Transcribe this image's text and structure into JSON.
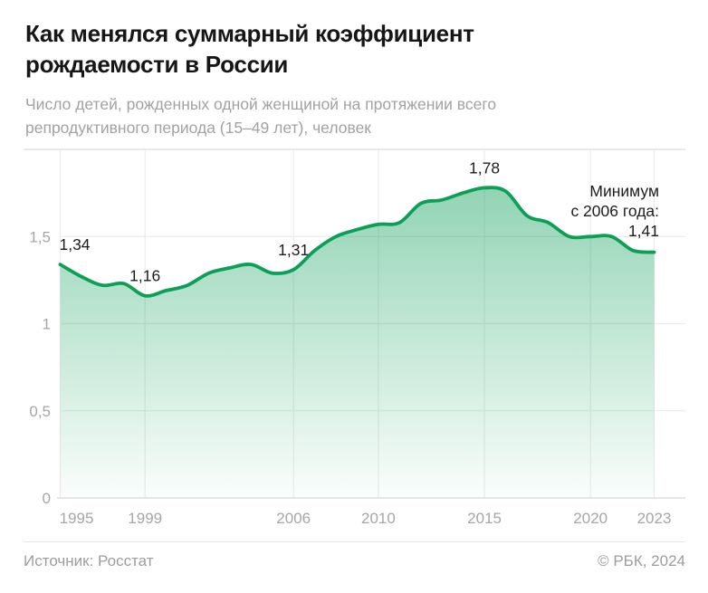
{
  "header": {
    "title_line1": "Как менялся суммарный коэффициент",
    "title_line2": "рождаемости в России",
    "subtitle_line1": "Число детей, рожденных одной женщиной на протяжении всего",
    "subtitle_line2": "репродуктивного периода (15–49 лет), человек"
  },
  "chart_data": {
    "type": "area",
    "title": "Как менялся суммарный коэффициент рождаемости в России",
    "x": [
      1995,
      1996,
      1997,
      1998,
      1999,
      2000,
      2001,
      2002,
      2003,
      2004,
      2005,
      2006,
      2007,
      2008,
      2009,
      2010,
      2011,
      2012,
      2013,
      2014,
      2015,
      2016,
      2017,
      2018,
      2019,
      2020,
      2021,
      2022,
      2023
    ],
    "values": [
      1.34,
      1.27,
      1.22,
      1.23,
      1.16,
      1.19,
      1.22,
      1.29,
      1.32,
      1.34,
      1.29,
      1.31,
      1.42,
      1.5,
      1.54,
      1.57,
      1.58,
      1.69,
      1.71,
      1.75,
      1.78,
      1.76,
      1.62,
      1.58,
      1.5,
      1.5,
      1.5,
      1.42,
      1.41
    ],
    "xlim": [
      1995,
      2023
    ],
    "ylim": [
      0,
      2
    ],
    "grid": true,
    "legend_position": "none",
    "y_ticks": [
      {
        "v": 0,
        "label": "0"
      },
      {
        "v": 0.5,
        "label": "0,5"
      },
      {
        "v": 1,
        "label": "1"
      },
      {
        "v": 1.5,
        "label": "1,5"
      }
    ],
    "x_ticks": [
      {
        "year": 1995,
        "label": "1995"
      },
      {
        "year": 1999,
        "label": "1999"
      },
      {
        "year": 2006,
        "label": "2006"
      },
      {
        "year": 2010,
        "label": "2010"
      },
      {
        "year": 2015,
        "label": "2015"
      },
      {
        "year": 2020,
        "label": "2020"
      },
      {
        "year": 2023,
        "label": "2023"
      }
    ],
    "point_labels": [
      {
        "year": 1995,
        "value": 1.34,
        "label": "1,34"
      },
      {
        "year": 1999,
        "value": 1.16,
        "label": "1,16"
      },
      {
        "year": 2006,
        "value": 1.31,
        "label": "1,31"
      },
      {
        "year": 2015,
        "value": 1.78,
        "label": "1,78"
      }
    ],
    "annotation": {
      "lines": [
        "Минимум",
        "с 2006 года:",
        "1,41"
      ]
    },
    "colors": {
      "line": "#0d9f58",
      "fill_top": "rgba(13,159,88,0.45)",
      "fill_bottom": "rgba(13,159,88,0.02)",
      "grid": "#ececec",
      "top_border": "#e9e9e9",
      "axis": "#dedede",
      "tick_text": "#a6a6a6",
      "label_text": "#1d1d1d"
    }
  },
  "footer": {
    "source": "Источник: Росстат",
    "copyright": "© РБК, 2024"
  }
}
